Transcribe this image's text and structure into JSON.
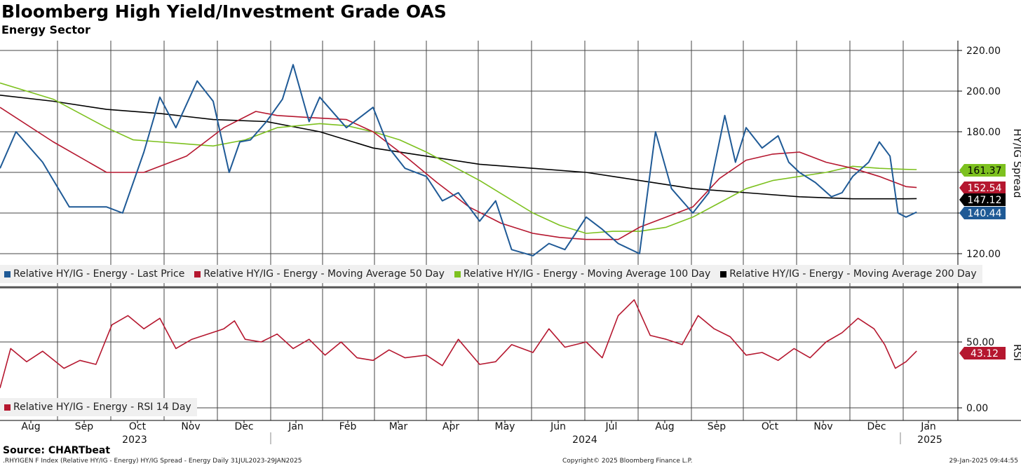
{
  "header": {
    "title": "Bloomberg High Yield/Investment Grade OAS",
    "subtitle": "Energy Sector"
  },
  "footer": {
    "source": "Source: CHARTbeat",
    "index_info": ".RHYIGEN F Index (Relative HY/IG - Energy) HY/IG Spread - Energy  Daily 31JUL2023-29JAN2025",
    "copyright": "Copyright© 2025 Bloomberg Finance L.P.",
    "timestamp": "29-Jan-2025 09:44:55"
  },
  "colors": {
    "last_price": "#1f5a96",
    "ma50": "#b5172f",
    "ma100": "#7dc11f",
    "ma200": "#000000",
    "rsi": "#b5172f"
  },
  "chart_data": [
    {
      "type": "line",
      "x_labels": [
        "Aug",
        "Sep",
        "Oct",
        "Nov",
        "Dec",
        "Jan",
        "Feb",
        "Mar",
        "Apr",
        "May",
        "Jun",
        "Jul",
        "Aug",
        "Sep",
        "Oct",
        "Nov",
        "Dec",
        "Jan"
      ],
      "year_labels": [
        "2023",
        "2024",
        "2025"
      ],
      "ylabel": "HY/IG Spread",
      "yticks": [
        "120.00",
        "140.00",
        "160.00",
        "180.00",
        "200.00",
        "220.00"
      ],
      "ylim": [
        112,
        225
      ],
      "last_values": {
        "ma100": "161.37",
        "ma50": "152.54",
        "ma200": "147.12",
        "last_price": "140.44"
      },
      "series": [
        {
          "name": "Relative HY/IG - Energy - Last Price",
          "key": "last_price",
          "x": [
            0,
            0.3,
            0.8,
            1.3,
            2,
            2.3,
            2.7,
            3,
            3.3,
            3.7,
            4,
            4.3,
            4.5,
            4.7,
            5,
            5.3,
            5.5,
            5.8,
            6,
            6.3,
            6.5,
            6.8,
            7,
            7.3,
            7.6,
            8,
            8.3,
            8.6,
            9,
            9.3,
            9.6,
            10,
            10.3,
            10.6,
            11,
            11.3,
            11.6,
            12,
            12.3,
            12.6,
            13,
            13.3,
            13.6,
            13.8,
            14,
            14.3,
            14.6,
            14.8,
            15,
            15.3,
            15.6,
            15.8,
            16,
            16.3,
            16.5,
            16.7,
            16.85,
            17,
            17.2
          ],
          "y": [
            162,
            180,
            165,
            143,
            143,
            140,
            170,
            197,
            182,
            205,
            195,
            160,
            175,
            176,
            185,
            196,
            213,
            185,
            197,
            188,
            182,
            188,
            192,
            172,
            162,
            158,
            146,
            150,
            136,
            146,
            122,
            119,
            125,
            122,
            138,
            132,
            125,
            120,
            180,
            152,
            140,
            150,
            188,
            165,
            182,
            172,
            178,
            165,
            160,
            155,
            148,
            150,
            158,
            165,
            175,
            168,
            140,
            138,
            140.44
          ]
        },
        {
          "name": "Relative HY/IG - Energy - Moving Average 50 Day",
          "key": "ma50",
          "x": [
            0,
            1,
            2,
            2.7,
            3.5,
            4.2,
            4.8,
            5.2,
            5.8,
            6.5,
            7,
            7.6,
            8.2,
            8.8,
            9.4,
            10,
            10.5,
            11,
            11.6,
            12,
            12.5,
            13,
            13.5,
            14,
            14.5,
            15,
            15.5,
            16,
            16.5,
            17,
            17.2
          ],
          "y": [
            192,
            175,
            160,
            160,
            168,
            182,
            190,
            188,
            187,
            186,
            180,
            168,
            155,
            143,
            135,
            130,
            128,
            127,
            127,
            133,
            138,
            143,
            157,
            166,
            169,
            170,
            165,
            162,
            158,
            153,
            152.54
          ]
        },
        {
          "name": "Relative HY/IG - Energy - Moving Average 100 Day",
          "key": "ma100",
          "x": [
            0,
            1,
            2,
            2.5,
            3,
            3.5,
            4,
            4.6,
            5.2,
            6,
            6.5,
            7,
            7.5,
            8,
            8.5,
            9,
            9.5,
            10,
            10.5,
            11,
            11.5,
            12,
            12.5,
            13,
            13.5,
            14,
            14.5,
            15,
            15.5,
            16,
            16.5,
            17,
            17.2
          ],
          "y": [
            204,
            196,
            182,
            176,
            175,
            174,
            173,
            176,
            182,
            184,
            183,
            180,
            176,
            170,
            163,
            156,
            148,
            140,
            134,
            130,
            131,
            131,
            133,
            138,
            145,
            152,
            156,
            158,
            160,
            163,
            162,
            161.5,
            161.37
          ]
        },
        {
          "name": "Relative HY/IG - Energy - Moving Average 200 Day",
          "key": "ma200",
          "x": [
            0,
            1,
            2,
            3,
            4,
            5,
            6,
            7,
            8,
            9,
            10,
            11,
            12,
            13,
            14,
            15,
            16,
            17,
            17.2
          ],
          "y": [
            198,
            195,
            191,
            189,
            186,
            185,
            180,
            172,
            168,
            164,
            162,
            160,
            156,
            152,
            150,
            148,
            147,
            147,
            147.12
          ]
        }
      ]
    },
    {
      "type": "line",
      "x_labels": [
        "Aug",
        "Sep",
        "Oct",
        "Nov",
        "Dec",
        "Jan",
        "Feb",
        "Mar",
        "Apr",
        "May",
        "Jun",
        "Jul",
        "Aug",
        "Sep",
        "Oct",
        "Nov",
        "Dec",
        "Jan"
      ],
      "ylabel": "RSI",
      "yticks": [
        "0.00",
        "50.00"
      ],
      "ylim": [
        -8,
        88
      ],
      "last_values": {
        "rsi": "43.12"
      },
      "series": [
        {
          "name": "Relative HY/IG - Energy - RSI 14 Day",
          "key": "rsi",
          "x": [
            0,
            0.2,
            0.5,
            0.8,
            1.2,
            1.5,
            1.8,
            2.1,
            2.4,
            2.7,
            3,
            3.3,
            3.6,
            3.9,
            4.2,
            4.4,
            4.6,
            4.9,
            5.2,
            5.5,
            5.8,
            6.1,
            6.4,
            6.7,
            7,
            7.3,
            7.6,
            8,
            8.3,
            8.6,
            9,
            9.3,
            9.6,
            10,
            10.3,
            10.6,
            11,
            11.3,
            11.6,
            11.9,
            12.2,
            12.5,
            12.8,
            13.1,
            13.4,
            13.7,
            14,
            14.3,
            14.6,
            14.9,
            15.2,
            15.5,
            15.8,
            16.1,
            16.4,
            16.6,
            16.8,
            17,
            17.2
          ],
          "y": [
            15,
            45,
            35,
            43,
            30,
            36,
            33,
            63,
            70,
            60,
            68,
            45,
            52,
            56,
            60,
            66,
            52,
            50,
            56,
            45,
            52,
            40,
            50,
            38,
            36,
            44,
            38,
            40,
            32,
            52,
            33,
            35,
            48,
            42,
            60,
            46,
            50,
            38,
            70,
            82,
            55,
            52,
            48,
            70,
            60,
            54,
            40,
            42,
            36,
            45,
            38,
            50,
            57,
            68,
            60,
            48,
            30,
            35,
            43.12
          ]
        }
      ]
    }
  ],
  "legend_top": [
    {
      "label": "Relative HY/IG - Energy - Last Price",
      "key": "last_price"
    },
    {
      "label": "Relative HY/IG - Energy - Moving Average 50 Day",
      "key": "ma50"
    },
    {
      "label": "Relative HY/IG - Energy - Moving Average 100 Day",
      "key": "ma100"
    },
    {
      "label": "Relative HY/IG - Energy - Moving Average 200 Day",
      "key": "ma200"
    }
  ],
  "legend_bottom": [
    {
      "label": "Relative HY/IG - Energy - RSI 14 Day",
      "key": "rsi"
    }
  ]
}
